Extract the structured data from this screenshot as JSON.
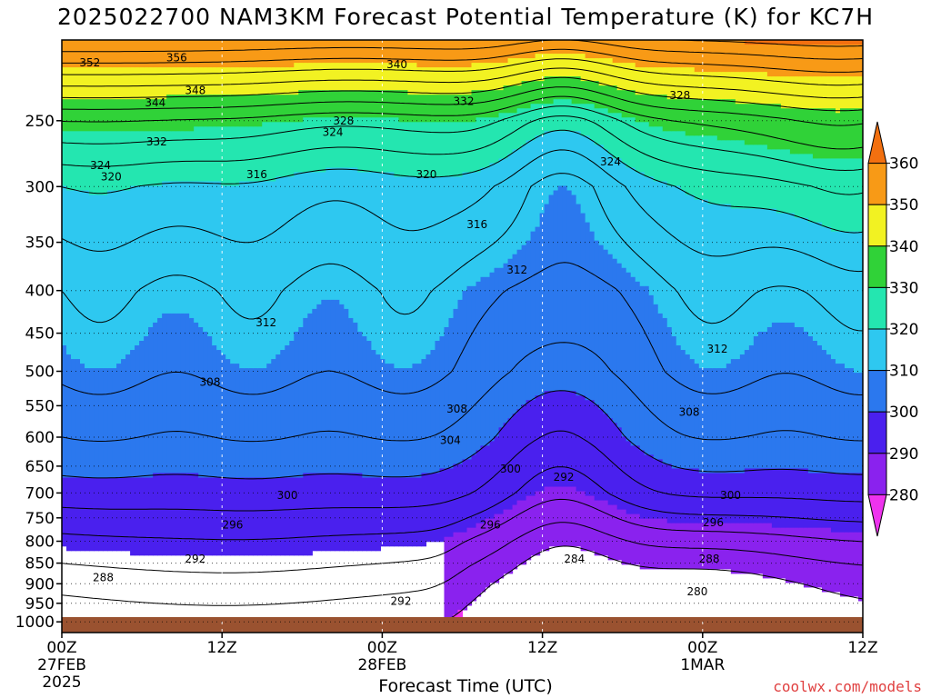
{
  "title": "2025022700 NAM3KM Forecast Potential Temperature (K) for KC7H",
  "xlabel": "Forecast Time (UTC)",
  "credit": "coolwx.com/models",
  "colors": {
    "ground": "#9a5230",
    "levels": [
      "#ee33ee",
      "#8a22ee",
      "#4a20ee",
      "#0b1fe6",
      "#1d4fe8",
      "#2b78ee",
      "#35a5f2",
      "#2ec8f0",
      "#24e6b0",
      "#30d238",
      "#aae412",
      "#f2f222",
      "#f8c41a",
      "#f89a16",
      "#f27010"
    ]
  },
  "chart_data": {
    "type": "contour",
    "title": "2025022700 NAM3KM Forecast Potential Temperature (K) for KC7H",
    "xlabel": "Forecast Time (UTC)",
    "ylabel": "",
    "y_scale": "log",
    "y_inverted": true,
    "xlim": [
      0,
      60
    ],
    "ylim": [
      1030,
      200
    ],
    "x_ticks": [
      {
        "value": 0,
        "label": [
          "00Z",
          "27FEB",
          "2025"
        ]
      },
      {
        "value": 12,
        "label": [
          "12Z"
        ]
      },
      {
        "value": 24,
        "label": [
          "00Z",
          "28FEB"
        ]
      },
      {
        "value": 36,
        "label": [
          "12Z"
        ]
      },
      {
        "value": 48,
        "label": [
          "00Z",
          "1MAR"
        ]
      },
      {
        "value": 60,
        "label": [
          "12Z"
        ]
      }
    ],
    "y_ticks": [
      250,
      300,
      350,
      400,
      450,
      500,
      550,
      600,
      650,
      700,
      750,
      800,
      850,
      900,
      950,
      1000
    ],
    "colorbar": {
      "ticks": [
        280,
        290,
        300,
        310,
        320,
        330,
        340,
        350,
        360
      ],
      "colors": [
        "#ee33ee",
        "#8a22ee",
        "#4a20ee",
        "#2b78ee",
        "#2ec8f0",
        "#24e6b0",
        "#30d238",
        "#f2f222",
        "#f89a16",
        "#f27010"
      ]
    },
    "contour_interval": 4,
    "theta_profile": {
      "pressure": [
        1000,
        900,
        800,
        700,
        600,
        500,
        400,
        300,
        250,
        200
      ],
      "theta": [
        280,
        284,
        290,
        298,
        304,
        309,
        312,
        320,
        332,
        360
      ]
    },
    "contour_labels": [
      {
        "x": 2.1,
        "p": 213,
        "text": "352"
      },
      {
        "x": 8.6,
        "p": 210,
        "text": "356"
      },
      {
        "x": 10,
        "p": 230,
        "text": "348"
      },
      {
        "x": 7,
        "p": 238,
        "text": "344"
      },
      {
        "x": 25.1,
        "p": 214,
        "text": "340"
      },
      {
        "x": 30.1,
        "p": 237,
        "text": "332"
      },
      {
        "x": 7.1,
        "p": 265,
        "text": "332"
      },
      {
        "x": 21.1,
        "p": 250,
        "text": "328"
      },
      {
        "x": 20.3,
        "p": 258,
        "text": "324"
      },
      {
        "x": 46.3,
        "p": 233,
        "text": "328"
      },
      {
        "x": 41.1,
        "p": 280,
        "text": "324"
      },
      {
        "x": 2.9,
        "p": 283,
        "text": "324"
      },
      {
        "x": 3.7,
        "p": 292,
        "text": "320"
      },
      {
        "x": 14.6,
        "p": 290,
        "text": "316"
      },
      {
        "x": 27.3,
        "p": 290,
        "text": "320"
      },
      {
        "x": 31.1,
        "p": 333,
        "text": "316"
      },
      {
        "x": 34.1,
        "p": 378,
        "text": "312"
      },
      {
        "x": 15.3,
        "p": 437,
        "text": "312"
      },
      {
        "x": 49.1,
        "p": 470,
        "text": "312"
      },
      {
        "x": 11.1,
        "p": 515,
        "text": "308"
      },
      {
        "x": 29.6,
        "p": 555,
        "text": "308"
      },
      {
        "x": 47,
        "p": 560,
        "text": "308"
      },
      {
        "x": 29.1,
        "p": 605,
        "text": "304"
      },
      {
        "x": 33.6,
        "p": 655,
        "text": "300"
      },
      {
        "x": 16.9,
        "p": 705,
        "text": "300"
      },
      {
        "x": 37.6,
        "p": 670,
        "text": "292"
      },
      {
        "x": 50.1,
        "p": 705,
        "text": "300"
      },
      {
        "x": 12.8,
        "p": 765,
        "text": "296"
      },
      {
        "x": 32.1,
        "p": 765,
        "text": "296"
      },
      {
        "x": 48.8,
        "p": 760,
        "text": "296"
      },
      {
        "x": 10,
        "p": 840,
        "text": "292"
      },
      {
        "x": 38.4,
        "p": 840,
        "text": "284"
      },
      {
        "x": 48.5,
        "p": 840,
        "text": "288"
      },
      {
        "x": 3.1,
        "p": 885,
        "text": "288"
      },
      {
        "x": 25.4,
        "p": 945,
        "text": "292"
      },
      {
        "x": 47.6,
        "p": 920,
        "text": "280"
      }
    ]
  }
}
